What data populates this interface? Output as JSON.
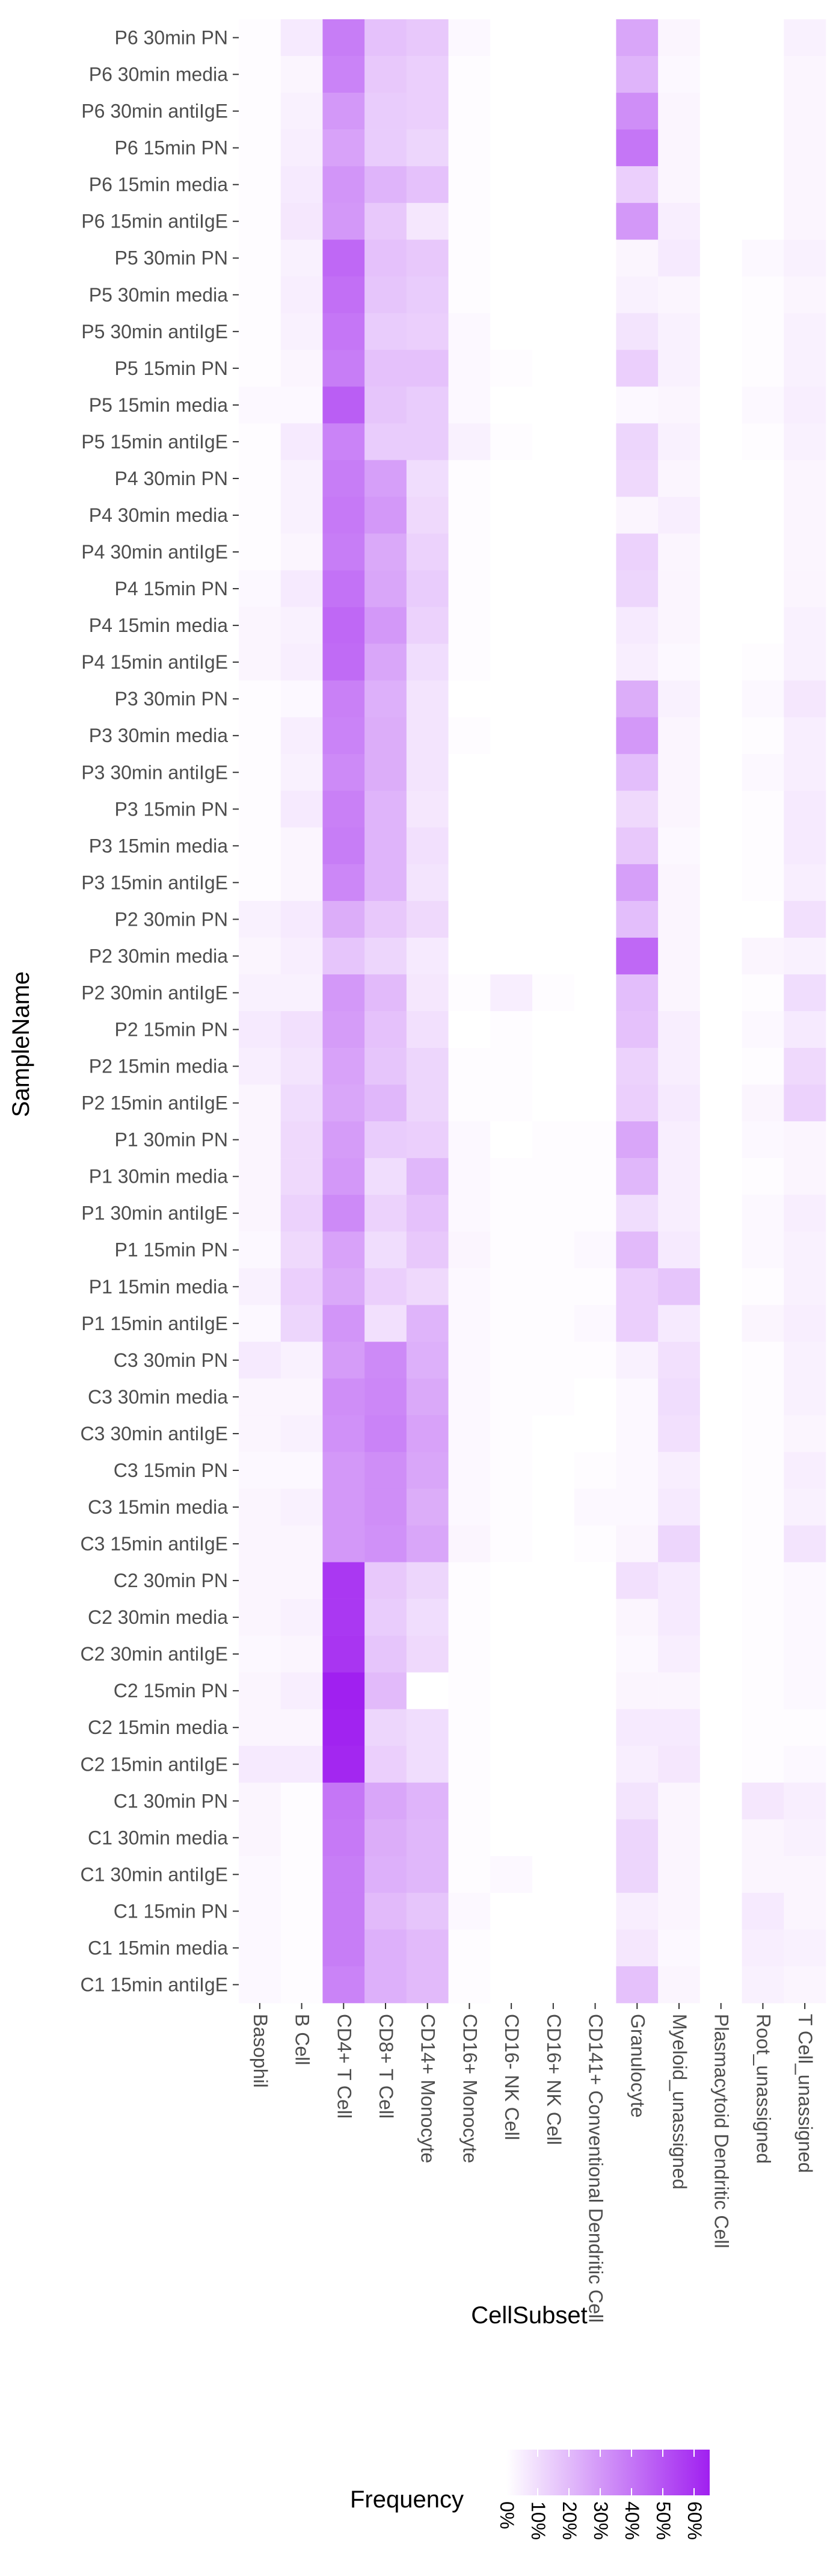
{
  "chart_data": {
    "type": "heatmap",
    "xlabel": "CellSubset",
    "ylabel": "SampleName",
    "legend": {
      "title": "Frequency",
      "position": "bottom",
      "ticks": [
        "0%",
        "10%",
        "20%",
        "30%",
        "40%",
        "50%",
        "60%"
      ],
      "tick_values": [
        0,
        10,
        20,
        30,
        40,
        50,
        60
      ],
      "max": 65,
      "color_low": "#ffffff",
      "color_high": "#a020f0"
    },
    "x": [
      "Basophil",
      "B Cell",
      "CD4+ T Cell",
      "CD8+ T Cell",
      "CD14+ Monocyte",
      "CD16+ Monocyte",
      "CD16- NK Cell",
      "CD16+ NK Cell",
      "CD141+ Conventional Dendritic Cell",
      "Granulocyte",
      "Myeloid_unassigned",
      "Plasmacytoid Dendritic Cell",
      "Root_unassigned",
      "T Cell_unassigned"
    ],
    "y": [
      "P6 30min PN",
      "P6 30min media",
      "P6 30min antiIgE",
      "P6 15min PN",
      "P6 15min media",
      "P6 15min antiIgE",
      "P5 30min PN",
      "P5 30min media",
      "P5 30min antiIgE",
      "P5 15min PN",
      "P5 15min media",
      "P5 15min antiIgE",
      "P4 30min PN",
      "P4 30min media",
      "P4 30min antiIgE",
      "P4 15min PN",
      "P4 15min media",
      "P4 15min antiIgE",
      "P3 30min PN",
      "P3 30min media",
      "P3 30min antiIgE",
      "P3 15min PN",
      "P3 15min media",
      "P3 15min antiIgE",
      "P2 30min PN",
      "P2 30min media",
      "P2 30min antiIgE",
      "P2 15min PN",
      "P2 15min media",
      "P2 15min antiIgE",
      "P1 30min PN",
      "P1 30min media",
      "P1 30min antiIgE",
      "P1 15min PN",
      "P1 15min media",
      "P1 15min antiIgE",
      "C3 30min PN",
      "C3 30min media",
      "C3 30min antiIgE",
      "C3 15min PN",
      "C3 15min media",
      "C3 15min antiIgE",
      "C2 30min PN",
      "C2 30min media",
      "C2 30min antiIgE",
      "C2 15min PN",
      "C2 15min media",
      "C2 15min antiIgE",
      "C1 30min PN",
      "C1 30min media",
      "C1 30min antiIgE",
      "C1 15min PN",
      "C1 15min media",
      "C1 15min antiIgE"
    ],
    "values": [
      [
        1,
        6,
        38,
        18,
        16,
        2,
        0,
        0,
        0,
        26,
        3,
        0,
        0,
        4
      ],
      [
        1,
        3,
        36,
        16,
        14,
        1,
        0,
        0,
        0,
        22,
        2,
        0,
        0,
        3
      ],
      [
        1,
        4,
        30,
        15,
        14,
        1,
        0,
        0,
        0,
        33,
        3,
        0,
        0,
        3
      ],
      [
        1,
        5,
        27,
        15,
        12,
        1,
        0,
        0,
        0,
        40,
        3,
        0,
        0,
        3
      ],
      [
        1,
        6,
        31,
        22,
        18,
        1,
        0,
        0,
        0,
        14,
        3,
        0,
        0,
        3
      ],
      [
        1,
        7,
        30,
        16,
        7,
        1,
        0,
        0,
        0,
        30,
        5,
        0,
        0,
        3
      ],
      [
        1,
        4,
        44,
        18,
        16,
        1,
        0,
        0,
        0,
        3,
        6,
        0,
        2,
        4
      ],
      [
        1,
        5,
        42,
        17,
        15,
        1,
        0,
        0,
        0,
        4,
        3,
        0,
        1,
        3
      ],
      [
        1,
        4,
        40,
        15,
        14,
        2,
        0,
        0,
        0,
        8,
        4,
        0,
        1,
        4
      ],
      [
        1,
        3,
        38,
        18,
        18,
        2,
        1,
        0,
        0,
        14,
        4,
        0,
        1,
        4
      ],
      [
        2,
        2,
        47,
        17,
        15,
        2,
        0,
        0,
        0,
        2,
        3,
        0,
        2,
        5
      ],
      [
        1,
        6,
        36,
        15,
        15,
        4,
        1,
        0,
        0,
        12,
        4,
        0,
        1,
        4
      ],
      [
        1,
        4,
        38,
        28,
        10,
        1,
        0,
        0,
        0,
        11,
        3,
        0,
        0,
        3
      ],
      [
        1,
        4,
        39,
        30,
        11,
        1,
        0,
        0,
        0,
        3,
        5,
        0,
        0,
        3
      ],
      [
        1,
        3,
        38,
        25,
        13,
        1,
        0,
        0,
        0,
        13,
        3,
        0,
        0,
        3
      ],
      [
        2,
        6,
        41,
        26,
        15,
        1,
        0,
        0,
        0,
        12,
        3,
        0,
        0,
        3
      ],
      [
        3,
        4,
        44,
        30,
        13,
        1,
        0,
        0,
        0,
        6,
        3,
        0,
        0,
        4
      ],
      [
        3,
        5,
        43,
        26,
        10,
        1,
        0,
        0,
        0,
        5,
        2,
        0,
        1,
        4
      ],
      [
        1,
        2,
        37,
        23,
        8,
        0,
        0,
        0,
        0,
        24,
        4,
        0,
        2,
        7
      ],
      [
        1,
        5,
        36,
        24,
        8,
        1,
        0,
        0,
        0,
        30,
        3,
        0,
        1,
        5
      ],
      [
        1,
        4,
        34,
        24,
        8,
        0,
        0,
        0,
        0,
        19,
        3,
        0,
        2,
        5
      ],
      [
        1,
        6,
        37,
        22,
        7,
        0,
        0,
        0,
        0,
        11,
        3,
        0,
        1,
        6
      ],
      [
        1,
        3,
        38,
        22,
        9,
        0,
        0,
        0,
        0,
        16,
        2,
        0,
        1,
        6
      ],
      [
        1,
        3,
        35,
        22,
        8,
        0,
        0,
        0,
        0,
        28,
        3,
        0,
        1,
        5
      ],
      [
        4,
        6,
        24,
        16,
        11,
        0,
        0,
        0,
        0,
        19,
        3,
        0,
        0,
        9
      ],
      [
        3,
        5,
        17,
        12,
        6,
        0,
        0,
        0,
        0,
        44,
        3,
        0,
        3,
        4
      ],
      [
        4,
        4,
        30,
        20,
        7,
        1,
        5,
        1,
        0,
        19,
        3,
        0,
        1,
        10
      ],
      [
        6,
        9,
        29,
        18,
        9,
        0,
        1,
        0,
        0,
        18,
        5,
        0,
        2,
        6
      ],
      [
        5,
        8,
        27,
        17,
        12,
        1,
        1,
        0,
        0,
        13,
        5,
        0,
        1,
        11
      ],
      [
        3,
        10,
        26,
        21,
        12,
        1,
        1,
        0,
        0,
        14,
        6,
        0,
        3,
        13
      ],
      [
        3,
        11,
        29,
        15,
        14,
        2,
        0,
        1,
        1,
        26,
        5,
        0,
        2,
        3
      ],
      [
        3,
        11,
        30,
        10,
        21,
        2,
        1,
        1,
        1,
        21,
        5,
        0,
        1,
        3
      ],
      [
        3,
        13,
        34,
        13,
        18,
        2,
        1,
        1,
        1,
        10,
        5,
        0,
        2,
        5
      ],
      [
        2,
        11,
        27,
        10,
        16,
        3,
        1,
        1,
        2,
        20,
        6,
        0,
        2,
        4
      ],
      [
        4,
        14,
        25,
        14,
        11,
        2,
        1,
        1,
        1,
        14,
        17,
        0,
        1,
        4
      ],
      [
        2,
        12,
        31,
        9,
        22,
        2,
        1,
        1,
        2,
        14,
        6,
        0,
        3,
        5
      ],
      [
        6,
        4,
        29,
        34,
        23,
        2,
        1,
        1,
        1,
        4,
        9,
        0,
        1,
        4
      ],
      [
        3,
        3,
        33,
        35,
        25,
        2,
        1,
        1,
        0,
        2,
        10,
        0,
        1,
        4
      ],
      [
        3,
        4,
        32,
        36,
        27,
        2,
        1,
        0,
        0,
        2,
        9,
        0,
        1,
        3
      ],
      [
        2,
        2,
        30,
        33,
        26,
        2,
        1,
        0,
        1,
        2,
        5,
        0,
        1,
        5
      ],
      [
        3,
        4,
        30,
        33,
        24,
        2,
        1,
        0,
        2,
        2,
        6,
        0,
        1,
        4
      ],
      [
        3,
        3,
        30,
        32,
        26,
        3,
        1,
        0,
        1,
        3,
        12,
        0,
        1,
        8
      ],
      [
        3,
        3,
        58,
        16,
        12,
        1,
        0,
        0,
        0,
        9,
        6,
        0,
        1,
        2
      ],
      [
        3,
        4,
        58,
        15,
        10,
        1,
        0,
        0,
        0,
        3,
        6,
        0,
        1,
        2
      ],
      [
        2,
        3,
        59,
        17,
        11,
        1,
        0,
        0,
        0,
        2,
        5,
        0,
        1,
        2
      ],
      [
        3,
        5,
        66,
        20,
        0,
        1,
        0,
        0,
        0,
        3,
        3,
        0,
        1,
        2
      ],
      [
        3,
        3,
        64,
        12,
        10,
        1,
        0,
        0,
        0,
        6,
        6,
        0,
        1,
        1
      ],
      [
        6,
        6,
        63,
        14,
        10,
        1,
        0,
        0,
        0,
        5,
        7,
        0,
        1,
        2
      ],
      [
        3,
        1,
        40,
        26,
        22,
        1,
        0,
        0,
        0,
        8,
        3,
        0,
        7,
        5
      ],
      [
        3,
        1,
        39,
        24,
        21,
        1,
        0,
        0,
        0,
        12,
        3,
        0,
        3,
        4
      ],
      [
        2,
        1,
        38,
        23,
        21,
        1,
        2,
        0,
        0,
        12,
        3,
        0,
        3,
        3
      ],
      [
        2,
        1,
        38,
        20,
        17,
        2,
        0,
        0,
        0,
        5,
        3,
        0,
        6,
        3
      ],
      [
        2,
        1,
        38,
        23,
        20,
        1,
        0,
        0,
        0,
        7,
        2,
        0,
        5,
        4
      ],
      [
        2,
        1,
        36,
        23,
        20,
        1,
        0,
        0,
        0,
        18,
        3,
        0,
        4,
        3
      ]
    ]
  }
}
